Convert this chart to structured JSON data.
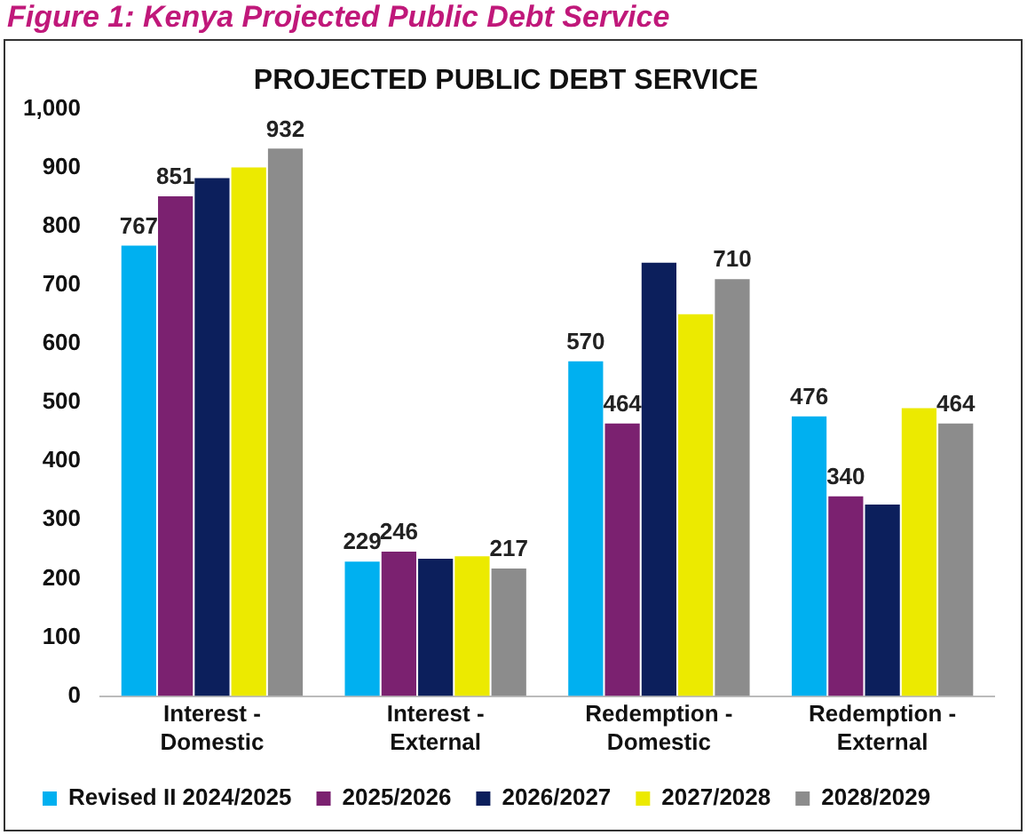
{
  "chart_data": {
    "type": "bar",
    "title": "PROJECTED PUBLIC DEBT SERVICE",
    "annotations": [
      "Figure 1: Kenya Projected Public Debt Service"
    ],
    "categories": [
      "Interest - Domestic",
      "Interest - External",
      "Redemption - Domestic",
      "Redemption - External"
    ],
    "series": [
      {
        "name": "Revised II 2024/2025",
        "color": "#00b0f0",
        "values": [
          767,
          229,
          570,
          476
        ],
        "value_labels": [
          "767",
          "229",
          "570",
          "476"
        ]
      },
      {
        "name": "2025/2026",
        "color": "#7b2170",
        "values": [
          851,
          246,
          464,
          340
        ],
        "value_labels": [
          "851",
          "246",
          "464",
          "340"
        ]
      },
      {
        "name": "2026/2027",
        "color": "#0c1f5c",
        "values": [
          882,
          234,
          738,
          326
        ]
      },
      {
        "name": "2027/2028",
        "color": "#ecea00",
        "values": [
          900,
          238,
          650,
          490
        ]
      },
      {
        "name": "2028/2029",
        "color": "#8c8c8c",
        "values": [
          932,
          217,
          710,
          464
        ],
        "value_labels": [
          "932",
          "217",
          "710",
          "464"
        ]
      }
    ],
    "ylim": [
      0,
      1000
    ],
    "yticks": [
      0,
      100,
      200,
      300,
      400,
      500,
      600,
      700,
      800,
      900,
      {
        "value": 1000,
        "label": "1,000"
      }
    ],
    "grid": false,
    "legend": "bottom"
  }
}
